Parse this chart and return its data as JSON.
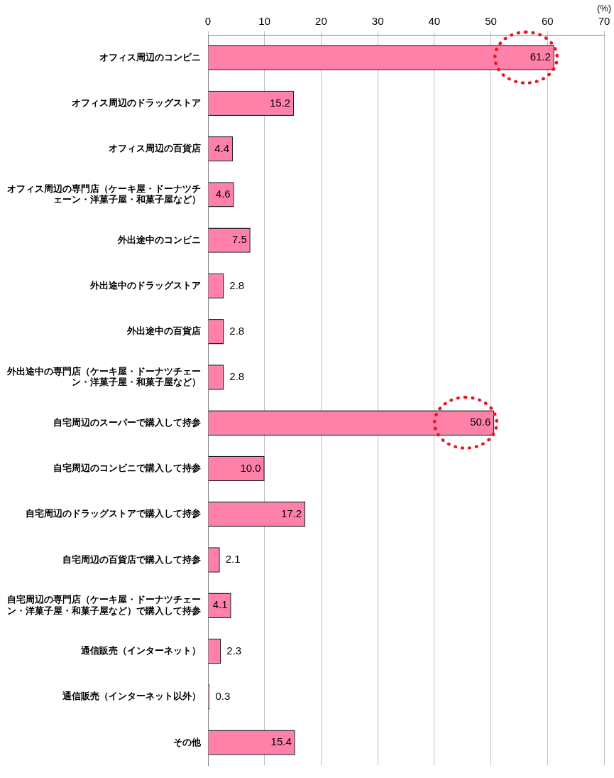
{
  "chart_data": {
    "type": "bar",
    "orientation": "horizontal",
    "xlabel": "(%)",
    "categories": [
      "オフィス周辺のコンビニ",
      "オフィス周辺のドラッグストア",
      "オフィス周辺の百貨店",
      "オフィス周辺の専門店（ケーキ屋・ドーナツチェーン・洋菓子屋・和菓子屋など）",
      "外出途中のコンビニ",
      "外出途中のドラッグストア",
      "外出途中の百貨店",
      "外出途中の専門店（ケーキ屋・ドーナツチェーン・洋菓子屋・和菓子屋など）",
      "自宅周辺のスーパーで購入して持参",
      "自宅周辺のコンビニで購入して持参",
      "自宅周辺のドラッグストアで購入して持参",
      "自宅周辺の百貨店で購入して持参",
      "自宅周辺の専門店（ケーキ屋・ドーナツチェーン・洋菓子屋・和菓子屋など）で購入して持参",
      "通信販売（インターネット）",
      "通信販売（インターネット以外）",
      "その他"
    ],
    "values": [
      61.2,
      15.2,
      4.4,
      4.6,
      7.5,
      2.8,
      2.8,
      2.8,
      50.6,
      10.0,
      17.2,
      2.1,
      4.1,
      2.3,
      0.3,
      15.4
    ],
    "value_labels": [
      "61.2",
      "15.2",
      "4.4",
      "4.6",
      "7.5",
      "2.8",
      "2.8",
      "2.8",
      "50.6",
      "10.0",
      "17.2",
      "2.1",
      "4.1",
      "2.3",
      "0.3",
      "15.4"
    ],
    "color": "#ff80a8",
    "xlim": [
      0,
      70
    ],
    "xticks": [
      0,
      10,
      20,
      30,
      40,
      50,
      60,
      70
    ],
    "grid": "x",
    "legend": false
  }
}
